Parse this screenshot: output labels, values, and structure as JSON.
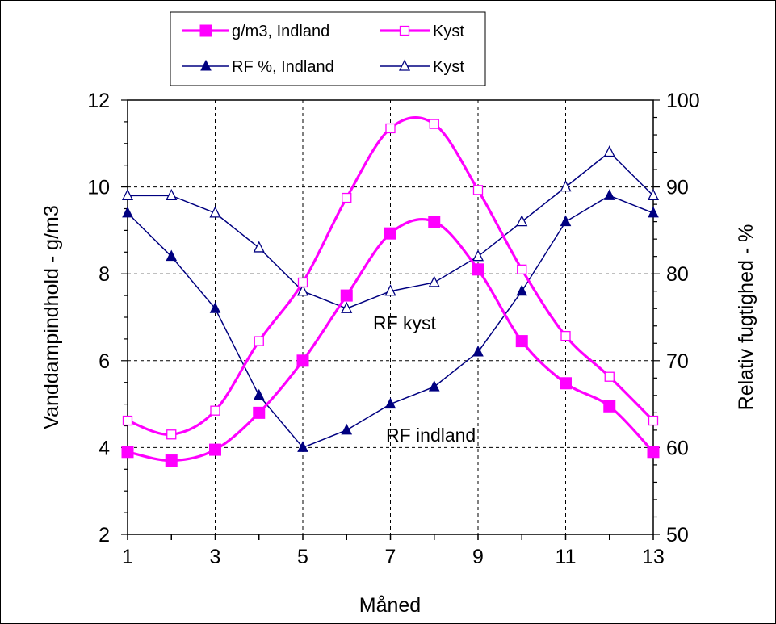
{
  "chart_data": {
    "type": "line",
    "x": [
      1,
      2,
      3,
      4,
      5,
      6,
      7,
      8,
      9,
      10,
      11,
      12,
      13
    ],
    "xlabel": "Måned",
    "xticks": [
      1,
      3,
      5,
      7,
      9,
      11,
      13
    ],
    "xlim": [
      1,
      13
    ],
    "ylabel_left": "Vanddampindhold - g/m3",
    "ylim_left": [
      2,
      12
    ],
    "yticks_left": [
      2,
      4,
      6,
      8,
      10,
      12
    ],
    "ylabel_right": "Relativ fugtighed - %",
    "ylim_right": [
      50,
      100
    ],
    "yticks_right": [
      50,
      60,
      70,
      80,
      90,
      100
    ],
    "grid": true,
    "legend_position": "top-center",
    "series": [
      {
        "name": "g/m3, Indland",
        "axis": "left",
        "color": "#ff00ff",
        "marker": "filled-square",
        "smooth": true,
        "values": [
          3.9,
          3.7,
          3.95,
          4.8,
          6.0,
          7.5,
          8.93,
          9.2,
          8.1,
          6.45,
          5.48,
          4.95,
          3.9
        ]
      },
      {
        "name": "Kyst",
        "axis": "left",
        "color": "#ff00ff",
        "marker": "open-square",
        "smooth": true,
        "values": [
          4.62,
          4.3,
          4.85,
          6.45,
          7.8,
          9.75,
          11.35,
          11.45,
          9.93,
          8.1,
          6.57,
          5.63,
          4.62
        ]
      },
      {
        "name": "RF %, Indland",
        "axis": "right",
        "color": "#000080",
        "marker": "filled-triangle",
        "smooth": false,
        "values": [
          87,
          82,
          76,
          66,
          60,
          62,
          65,
          67,
          71,
          78,
          86,
          89,
          87
        ]
      },
      {
        "name": "Kyst",
        "axis": "right",
        "color": "#000080",
        "marker": "open-triangle",
        "smooth": false,
        "values": [
          89,
          89,
          87,
          83,
          78,
          76,
          78,
          79,
          82,
          86,
          90,
          94,
          89
        ]
      }
    ],
    "annotations": [
      "RF kyst",
      "RF indland"
    ]
  }
}
